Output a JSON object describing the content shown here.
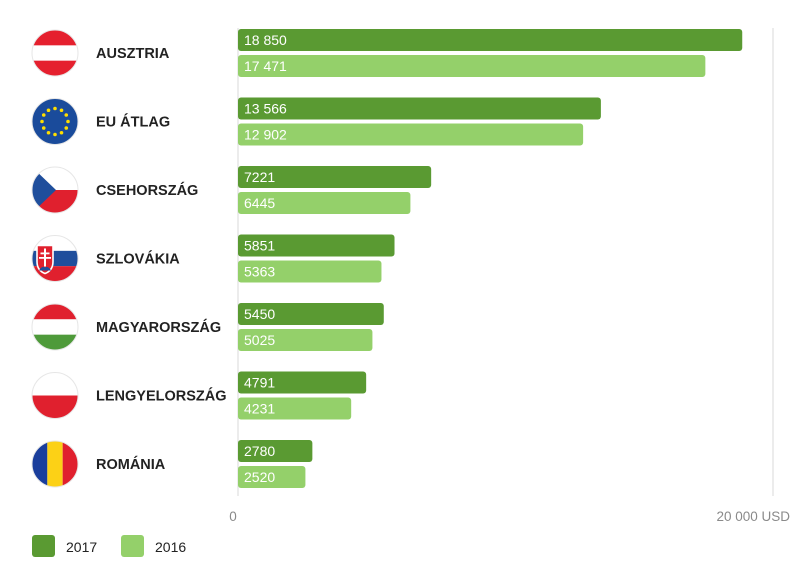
{
  "chart_data": {
    "type": "bar",
    "orientation": "horizontal",
    "categories": [
      "AUSZTRIA",
      "EU ÁTLAG",
      "CSEHORSZÁG",
      "SZLOVÁKIA",
      "MAGYARORSZÁG",
      "LENGYELORSZÁG",
      "ROMÁNIA"
    ],
    "series": [
      {
        "name": "2017",
        "color": "#5a9a32",
        "values": [
          18850,
          13566,
          7221,
          5851,
          5450,
          4791,
          2780
        ],
        "labels": [
          "18 850",
          "13 566",
          "7221",
          "5851",
          "5450",
          "4791",
          "2780"
        ]
      },
      {
        "name": "2016",
        "color": "#94d06a",
        "values": [
          17471,
          12902,
          6445,
          5363,
          5025,
          4231,
          2520
        ],
        "labels": [
          "17 471",
          "12 902",
          "6445",
          "5363",
          "5025",
          "4231",
          "2520"
        ]
      }
    ],
    "xlim": [
      0,
      20000
    ],
    "x_tick_labels": [
      "0",
      "20 000 USD"
    ],
    "legend_position": "bottom-left",
    "flags": [
      {
        "country": "AUSZTRIA",
        "icon": "austria-flag-icon"
      },
      {
        "country": "EU ÁTLAG",
        "icon": "eu-flag-icon"
      },
      {
        "country": "CSEHORSZÁG",
        "icon": "czech-flag-icon"
      },
      {
        "country": "SZLOVÁKIA",
        "icon": "slovakia-flag-icon"
      },
      {
        "country": "MAGYARORSZÁG",
        "icon": "hungary-flag-icon"
      },
      {
        "country": "LENGYELORSZÁG",
        "icon": "poland-flag-icon"
      },
      {
        "country": "ROMÁNIA",
        "icon": "romania-flag-icon"
      }
    ],
    "colors": {
      "axis_line": "#d9d9d9",
      "austria_red": "#e5202e",
      "eu_blue": "#1a4b9b",
      "eu_star": "#ffde00",
      "czech_blue": "#1f4e9c",
      "slovak_red": "#e0202e",
      "hungary_green": "#4e9a3a",
      "romania_blue": "#1a3e9c",
      "romania_yellow": "#fcd116",
      "romania_red": "#e0202e"
    }
  }
}
